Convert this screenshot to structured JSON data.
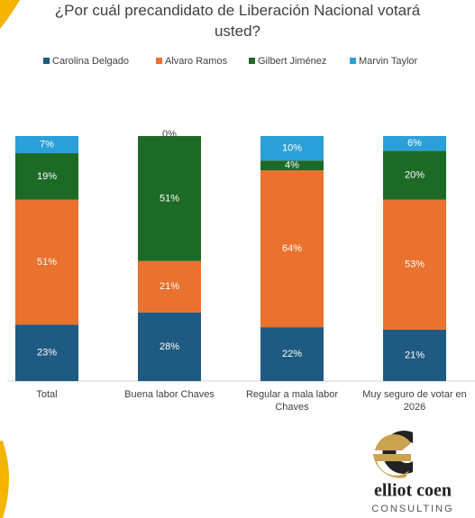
{
  "chart_data": {
    "type": "stacked-bar",
    "title": "¿Por cuál precandidato de Liberación Nacional votará usted?",
    "categories": [
      "Total",
      "Buena labor Chaves",
      "Regular a mala labor Chaves",
      "Muy seguro de votar en 2026"
    ],
    "series": [
      {
        "name": "Carolina Delgado",
        "color": "#1f5a82",
        "values": [
          23,
          28,
          22,
          21
        ],
        "value_labels": [
          "23%",
          "28%",
          "22%",
          "21%"
        ]
      },
      {
        "name": "Alvaro Ramos",
        "color": "#e8722e",
        "values": [
          51,
          21,
          64,
          53
        ],
        "value_labels": [
          "51%",
          "21%",
          "64%",
          "53%"
        ]
      },
      {
        "name": "Gilbert Jiménez",
        "color": "#1d6a27",
        "values": [
          19,
          51,
          4,
          20
        ],
        "value_labels": [
          "19%",
          "51%",
          "4%",
          "20%"
        ]
      },
      {
        "name": "Marvin Taylor",
        "color": "#2b9fd8",
        "values": [
          7,
          0,
          10,
          6
        ],
        "value_labels": [
          "7%",
          "0%",
          "10%",
          "6%"
        ]
      }
    ]
  },
  "logo": {
    "name": "elliot coen",
    "tagline": "CONSULTING"
  }
}
